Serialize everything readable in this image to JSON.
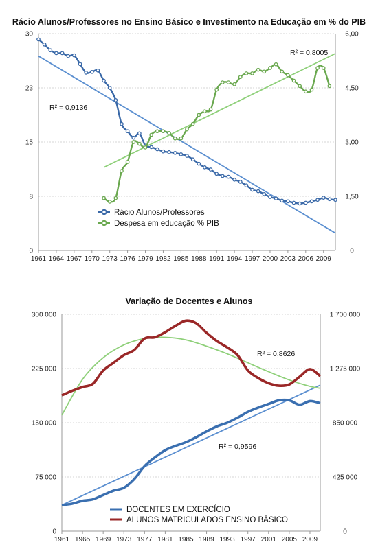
{
  "chart_data": [
    {
      "type": "line",
      "title": "Rácio Alunos/Professores no Ensino Básico e Investimento na Educação em % do PIB",
      "x_ticks": [
        "1961",
        "1964",
        "1967",
        "1970",
        "1973",
        "1976",
        "1979",
        "1982",
        "1985",
        "1988",
        "1991",
        "1994",
        "1997",
        "2000",
        "2003",
        "2006",
        "2009"
      ],
      "xlim": [
        1961,
        2011
      ],
      "y_left": {
        "ticks": [
          "0",
          "8",
          "15",
          "23",
          "30"
        ],
        "lim": [
          0,
          30
        ]
      },
      "y_right": {
        "ticks": [
          "0",
          "1,50",
          "3,00",
          "4,50",
          "6,00"
        ],
        "lim": [
          0,
          6
        ]
      },
      "grid": true,
      "legend_position": "lower-left",
      "series": [
        {
          "name": "Rácio Alunos/Professores",
          "axis": "left",
          "color": "#3a69a8",
          "x": [
            1961,
            1962,
            1963,
            1964,
            1965,
            1966,
            1967,
            1968,
            1969,
            1970,
            1971,
            1972,
            1973,
            1974,
            1975,
            1976,
            1977,
            1978,
            1979,
            1980,
            1981,
            1982,
            1983,
            1984,
            1985,
            1986,
            1987,
            1988,
            1989,
            1990,
            1991,
            1992,
            1993,
            1994,
            1995,
            1996,
            1997,
            1998,
            1999,
            2000,
            2001,
            2002,
            2003,
            2004,
            2005,
            2006,
            2007,
            2008,
            2009,
            2010,
            2011
          ],
          "values": [
            29.2,
            28.5,
            27.7,
            27.3,
            27.3,
            26.9,
            27.0,
            25.8,
            24.6,
            24.7,
            24.9,
            23.5,
            22.5,
            20.8,
            17.5,
            16.5,
            15.6,
            16.2,
            14.5,
            14.3,
            14.0,
            13.7,
            13.6,
            13.5,
            13.3,
            13.1,
            12.6,
            12.0,
            11.5,
            11.2,
            10.6,
            10.3,
            10.2,
            9.8,
            9.5,
            9.0,
            8.4,
            8.2,
            7.8,
            7.4,
            7.2,
            6.9,
            6.8,
            6.6,
            6.5,
            6.6,
            6.8,
            7.0,
            7.3,
            7.1,
            7.0
          ]
        },
        {
          "name": "Despesa em educação % PIB",
          "axis": "right",
          "color": "#6aa84f",
          "x": [
            1972,
            1973,
            1974,
            1975,
            1976,
            1977,
            1978,
            1979,
            1980,
            1981,
            1982,
            1983,
            1984,
            1985,
            1986,
            1987,
            1988,
            1989,
            1990,
            1991,
            1992,
            1993,
            1994,
            1995,
            1996,
            1997,
            1998,
            1999,
            2000,
            2001,
            2002,
            2003,
            2004,
            2005,
            2006,
            2007,
            2008,
            2009,
            2010
          ],
          "values": [
            1.45,
            1.35,
            1.45,
            2.2,
            2.45,
            3.0,
            2.95,
            2.85,
            3.2,
            3.3,
            3.3,
            3.25,
            3.1,
            3.1,
            3.35,
            3.5,
            3.75,
            3.85,
            3.9,
            4.45,
            4.65,
            4.65,
            4.6,
            4.8,
            4.9,
            4.9,
            5.0,
            4.95,
            5.05,
            5.15,
            4.95,
            4.85,
            4.7,
            4.55,
            4.4,
            4.45,
            5.05,
            5.05,
            4.55
          ]
        }
      ],
      "trendlines": [
        {
          "series": "Rácio Alunos/Professores",
          "x": [
            1961,
            2011
          ],
          "values": [
            26.9,
            2.4
          ],
          "color": "#5b8fd0",
          "r2_label": "R² = 0,9136"
        },
        {
          "series": "Despesa em educação % PIB",
          "x": [
            1972,
            2011
          ],
          "values": [
            2.3,
            5.45
          ],
          "color": "#8fd07a",
          "r2_label": "R² = 0,8005"
        }
      ]
    },
    {
      "type": "line",
      "title": "Variação de Docentes e Alunos",
      "x_ticks": [
        "1961",
        "1965",
        "1969",
        "1973",
        "1977",
        "1981",
        "1985",
        "1989",
        "1993",
        "1997",
        "2001",
        "2005",
        "2009"
      ],
      "xlim": [
        1961,
        2011
      ],
      "y_left": {
        "ticks": [
          "0",
          "75 000",
          "150 000",
          "225 000",
          "300 000"
        ],
        "lim": [
          0,
          300000
        ]
      },
      "y_right": {
        "ticks": [
          "0",
          "425 000",
          "850 000",
          "1 275 000",
          "1 700 000"
        ],
        "lim": [
          0,
          1700000
        ]
      },
      "grid": true,
      "legend_position": "bottom-center",
      "series": [
        {
          "name": "DOCENTES EM EXERCÍCIO",
          "axis": "left",
          "color": "#3a6fb0",
          "x": [
            1961,
            1963,
            1965,
            1967,
            1969,
            1971,
            1973,
            1975,
            1977,
            1979,
            1981,
            1983,
            1985,
            1987,
            1989,
            1991,
            1993,
            1995,
            1997,
            1999,
            2001,
            2003,
            2005,
            2007,
            2009,
            2011
          ],
          "values": [
            36000,
            38000,
            42000,
            44000,
            50000,
            56000,
            60000,
            72000,
            90000,
            102000,
            112000,
            118000,
            123000,
            130000,
            138000,
            145000,
            150000,
            157000,
            165000,
            171000,
            176000,
            181000,
            181000,
            175000,
            180000,
            177000
          ]
        },
        {
          "name": "ALUNOS MATRICULADOS ENSINO BÁSICO",
          "axis": "right",
          "color": "#9a2727",
          "x": [
            1961,
            1963,
            1965,
            1967,
            1969,
            1971,
            1973,
            1975,
            1977,
            1979,
            1981,
            1983,
            1985,
            1987,
            1989,
            1991,
            1993,
            1995,
            1997,
            1999,
            2001,
            2003,
            2005,
            2007,
            2009,
            2011
          ],
          "values": [
            1065000,
            1100000,
            1130000,
            1155000,
            1260000,
            1320000,
            1380000,
            1420000,
            1510000,
            1520000,
            1560000,
            1610000,
            1650000,
            1630000,
            1555000,
            1490000,
            1440000,
            1380000,
            1260000,
            1200000,
            1160000,
            1140000,
            1150000,
            1210000,
            1270000,
            1215000
          ]
        }
      ],
      "trendlines": [
        {
          "series": "DOCENTES EM EXERCÍCIO",
          "x": [
            1961,
            2011
          ],
          "values": [
            36000,
            202000
          ],
          "color": "#5b8fd0",
          "r2_label": "R² = 0,9596"
        },
        {
          "series": "ALUNOS MATRICULADOS ENSINO BÁSICO",
          "x": [
            1961,
            1965,
            1969,
            1973,
            1977,
            1981,
            1985,
            1989,
            1993,
            1997,
            2001,
            2005,
            2009,
            2011
          ],
          "values": [
            910000,
            1190000,
            1360000,
            1460000,
            1510000,
            1520000,
            1500000,
            1450000,
            1390000,
            1320000,
            1250000,
            1185000,
            1135000,
            1120000
          ],
          "color": "#8fd07a",
          "r2_label": "R² = 0,8626"
        }
      ]
    }
  ]
}
